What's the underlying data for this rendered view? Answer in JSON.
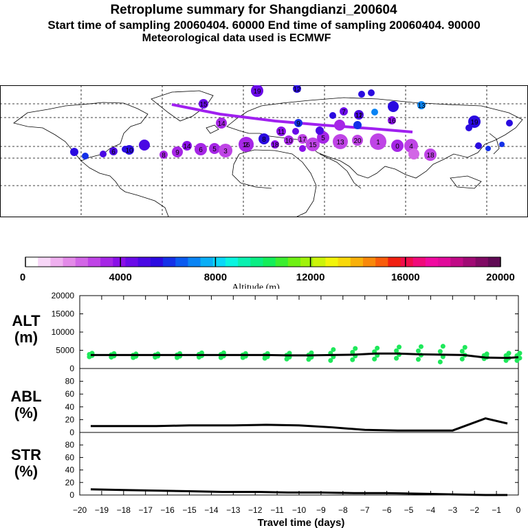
{
  "header": {
    "title": "Retroplume summary for Shangdianzi_200604",
    "sampling": "Start time of sampling 20060404. 60000     End time of sampling 20060404. 90000",
    "met": "Meteorological data used is ECMWF"
  },
  "colors": {
    "scale": [
      "#ffffff",
      "#f7d6f7",
      "#efb0ef",
      "#e38ae8",
      "#d266e6",
      "#bf44e6",
      "#a626e6",
      "#8a10e8",
      "#6a0ae8",
      "#4a08e4",
      "#2a0ae0",
      "#1430e8",
      "#0a5af0",
      "#0a84f4",
      "#0aaef6",
      "#0ad8f8",
      "#0af4e0",
      "#0af0b0",
      "#0aee84",
      "#14ee5a",
      "#3cee30",
      "#6ef014",
      "#a0f20a",
      "#ccf40a",
      "#f2f40a",
      "#f8d80a",
      "#f8b00a",
      "#f8880a",
      "#f85c0a",
      "#f02010",
      "#f00c4a",
      "#f00a7a",
      "#f00aa0",
      "#e00a9a",
      "#c00a86",
      "#a00a74",
      "#800a64",
      "#600a54"
    ],
    "plume_line": "#a020f0",
    "alt_points": "#1ee85a"
  },
  "map_labels": [
    {
      "t": "19"
    },
    {
      "t": "12"
    },
    {
      "t": "15"
    },
    {
      "t": "13"
    },
    {
      "t": "19"
    },
    {
      "t": "14"
    },
    {
      "t": "11"
    },
    {
      "t": "12"
    },
    {
      "t": "9"
    },
    {
      "t": "7"
    },
    {
      "t": "8"
    },
    {
      "t": "10"
    },
    {
      "t": "18"
    },
    {
      "t": "17"
    },
    {
      "t": "16"
    },
    {
      "t": "15"
    },
    {
      "t": "14"
    },
    {
      "t": "9"
    },
    {
      "t": "8"
    },
    {
      "t": "6"
    },
    {
      "t": "5"
    },
    {
      "t": "3"
    },
    {
      "t": "2"
    },
    {
      "t": "1"
    },
    {
      "t": "0"
    },
    {
      "t": "4"
    },
    {
      "t": "18"
    },
    {
      "t": "20"
    },
    {
      "t": "10"
    },
    {
      "t": "6"
    },
    {
      "t": "5"
    },
    {
      "t": "11"
    },
    {
      "t": "13"
    },
    {
      "t": "16"
    }
  ],
  "colorbar": {
    "ticks": [
      "0",
      "4000",
      "8000",
      "12000",
      "16000",
      "20000"
    ],
    "label": "Altitude (m)"
  },
  "panels": {
    "alt": {
      "label_top": "ALT",
      "label_bottom": "(m)",
      "ticks": [
        "0",
        "5000",
        "10000",
        "15000",
        "20000"
      ]
    },
    "abl": {
      "label_top": "ABL",
      "label_bottom": "(%)",
      "ticks": [
        "0",
        "20",
        "40",
        "60",
        "80"
      ]
    },
    "str": {
      "label_top": "STR",
      "label_bottom": "(%)",
      "ticks": [
        "0",
        "20",
        "40",
        "60",
        "80"
      ]
    },
    "xticks": [
      "−20",
      "−19",
      "−18",
      "−17",
      "−16",
      "−15",
      "−14",
      "−13",
      "−12",
      "−11",
      "−10",
      "−9",
      "−8",
      "−7",
      "−6",
      "−5",
      "−4",
      "−3",
      "−2",
      "−1",
      "0"
    ],
    "xlabel": "Travel time (days)"
  },
  "chart_data": [
    {
      "type": "line",
      "title": "ALT (m)",
      "x": [
        -19.5,
        -18.5,
        -17.5,
        -16.5,
        -15.5,
        -14.5,
        -13.5,
        -12.5,
        -11.5,
        -10.5,
        -9.5,
        -8.5,
        -7.5,
        -6.5,
        -5.5,
        -4.5,
        -3.5,
        -2.5,
        -1.5,
        -0.5,
        0
      ],
      "values": [
        3700,
        3700,
        3700,
        3700,
        3700,
        3700,
        3700,
        3700,
        3700,
        3600,
        3600,
        3700,
        3800,
        4100,
        4100,
        3900,
        3800,
        3700,
        3000,
        2900,
        3100
      ],
      "scatter_spread": [
        [
          3200,
          4200
        ],
        [
          3100,
          4100
        ],
        [
          3000,
          4000
        ],
        [
          3100,
          4000
        ],
        [
          3000,
          4100
        ],
        [
          3100,
          4300
        ],
        [
          3000,
          4300
        ],
        [
          3000,
          4100
        ],
        [
          2800,
          4100
        ],
        [
          2600,
          4200
        ],
        [
          2500,
          4300
        ],
        [
          2200,
          5200
        ],
        [
          2400,
          5500
        ],
        [
          2600,
          5600
        ],
        [
          2800,
          5900
        ],
        [
          2500,
          6000
        ],
        [
          1800,
          6100
        ],
        [
          2600,
          5800
        ],
        [
          2700,
          4000
        ],
        [
          2200,
          4200
        ],
        [
          2200,
          4200
        ]
      ],
      "ylim": [
        0,
        20000
      ],
      "xlim": [
        -20,
        0
      ]
    },
    {
      "type": "line",
      "title": "ABL (%)",
      "x": [
        -19.5,
        -18,
        -16.5,
        -15,
        -13,
        -11.5,
        -10,
        -8.5,
        -7,
        -5.5,
        -4,
        -3,
        -1.5,
        -0.5
      ],
      "values": [
        10,
        10,
        10,
        11,
        11,
        12,
        11,
        8,
        4,
        3,
        3,
        3,
        22,
        14
      ],
      "ylim": [
        0,
        100
      ],
      "xlim": [
        -20,
        0
      ]
    },
    {
      "type": "line",
      "title": "STR (%)",
      "x": [
        -19.5,
        -18,
        -16.5,
        -15,
        -13.5,
        -12,
        -10.5,
        -9,
        -7.5,
        -6,
        -4.5,
        -3,
        -1.5,
        -0.5
      ],
      "values": [
        9,
        8,
        7,
        6,
        5,
        5,
        4,
        4,
        3,
        3,
        2,
        1,
        0,
        0
      ],
      "ylim": [
        0,
        100
      ],
      "xlim": [
        -20,
        0
      ]
    }
  ]
}
